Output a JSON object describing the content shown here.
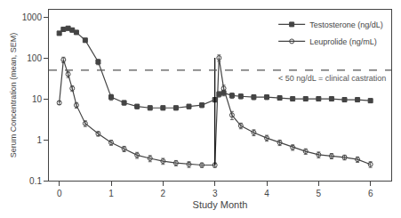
{
  "chart_data": {
    "type": "line",
    "xlabel": "Study Month",
    "ylabel": "Serum Concentration (mean, SEM)",
    "x": [
      0,
      0.08,
      0.17,
      0.25,
      0.33,
      0.5,
      0.75,
      1.0,
      1.25,
      1.5,
      1.75,
      2.0,
      2.25,
      2.5,
      2.75,
      3.0,
      3.08,
      3.17,
      3.33,
      3.5,
      3.75,
      4.0,
      4.25,
      4.5,
      4.75,
      5.0,
      5.25,
      5.5,
      5.75,
      6.0
    ],
    "series": [
      {
        "name": "Testosterone (ng/dL)",
        "color": "#444444",
        "marker": "square",
        "line_style": "solid",
        "values": [
          400,
          500,
          530,
          480,
          420,
          270,
          80,
          11,
          8,
          6.5,
          6,
          6,
          6,
          6.5,
          7,
          9.5,
          13,
          14,
          12,
          11.5,
          11,
          11,
          10.5,
          10,
          10,
          10,
          10,
          9.5,
          9.5,
          9.0
        ],
        "errors": [
          35,
          45,
          50,
          45,
          40,
          30,
          12,
          1.8,
          1.0,
          0.8,
          0.7,
          0.7,
          0.7,
          0.8,
          0.9,
          1.2,
          2.0,
          2.2,
          1.8,
          1.5,
          1.5,
          1.4,
          1.2,
          1.1,
          1.1,
          1.1,
          1.0,
          1.0,
          1.0,
          0.9
        ]
      },
      {
        "name": "Leuprolide (ng/mL)",
        "color": "#444444",
        "marker": "circle-open",
        "line_style": "solid",
        "values": [
          8,
          90,
          40,
          18,
          7,
          2.5,
          1.4,
          0.85,
          0.6,
          0.42,
          0.35,
          0.3,
          0.27,
          0.25,
          0.24,
          0.24,
          100,
          18,
          4,
          2.2,
          1.5,
          1.1,
          0.85,
          0.65,
          0.52,
          0.43,
          0.4,
          0.37,
          0.33,
          0.25
        ],
        "errors": [
          0.8,
          14,
          7,
          2.8,
          1.1,
          0.4,
          0.18,
          0.12,
          0.09,
          0.07,
          0.06,
          0.05,
          0.04,
          0.04,
          0.03,
          0.03,
          18,
          3.5,
          0.9,
          0.35,
          0.25,
          0.18,
          0.13,
          0.1,
          0.08,
          0.07,
          0.06,
          0.05,
          0.05,
          0.04
        ]
      }
    ],
    "xlim": [
      -0.2,
      6.4
    ],
    "xticks": [
      0,
      1,
      2,
      3,
      4,
      5,
      6
    ],
    "ylim": [
      0.1,
      1500
    ],
    "yticks": [
      0.1,
      1,
      10,
      100,
      1000
    ],
    "log": "y",
    "grid": false,
    "legend": "upper right",
    "reference_lines": [
      {
        "orientation": "vertical",
        "x": 3.0,
        "y_range": [
          0.24,
          100
        ],
        "color": "#000000",
        "line_style": "solid"
      },
      {
        "orientation": "horizontal",
        "y": 50,
        "color": "#555555",
        "line_style": "dashed",
        "label": "< 50 ng/dL = clinical castration"
      }
    ]
  }
}
